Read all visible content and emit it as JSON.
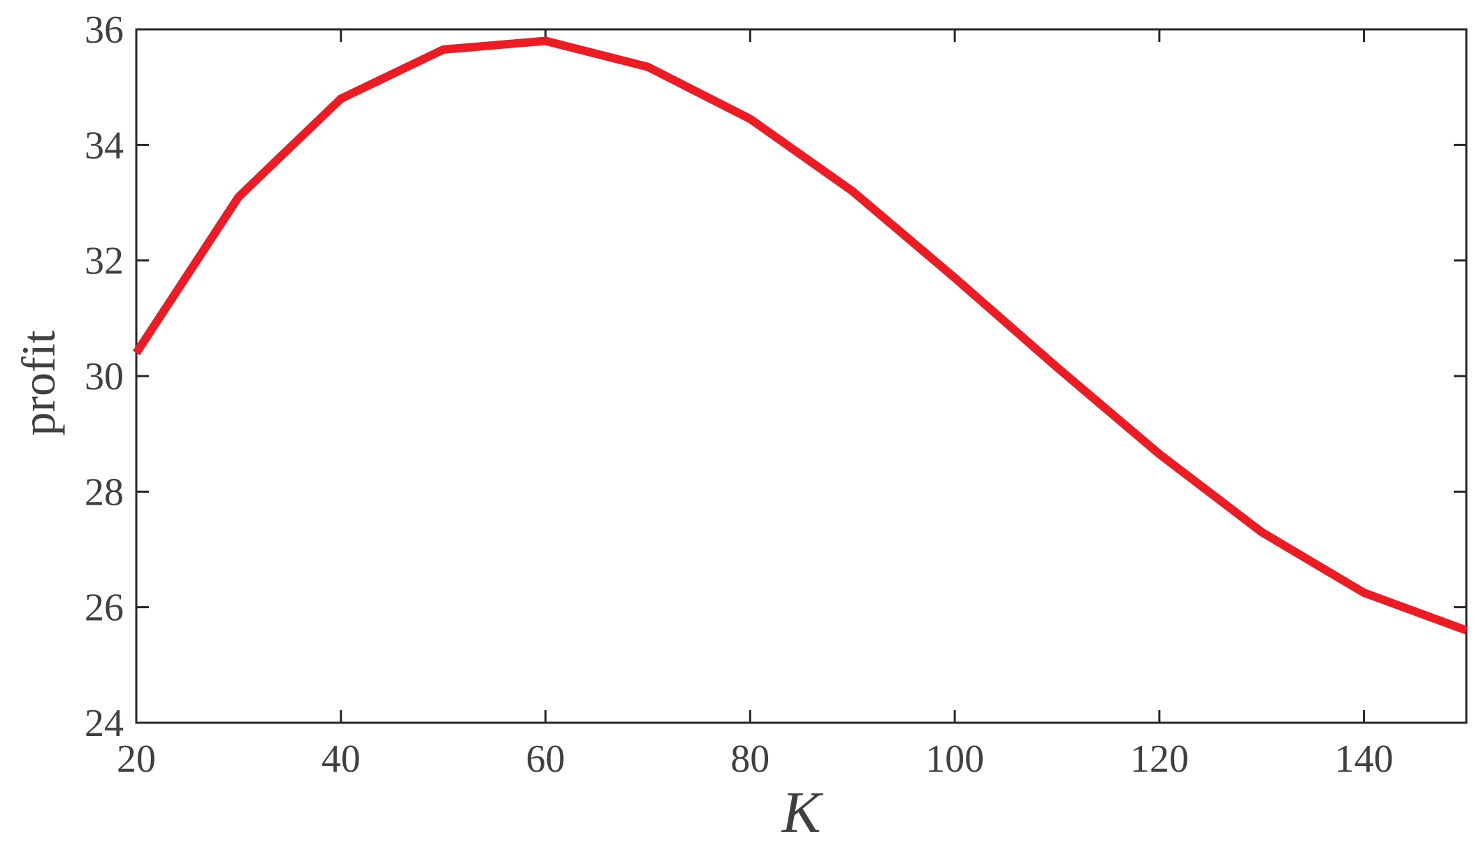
{
  "chart_data": {
    "type": "line",
    "xlabel": "K",
    "ylabel": "profit",
    "xlim": [
      20,
      150
    ],
    "ylim": [
      24,
      36
    ],
    "xticks": [
      20,
      40,
      60,
      80,
      100,
      120,
      140
    ],
    "yticks": [
      24,
      26,
      28,
      30,
      32,
      34,
      36
    ],
    "grid": false,
    "series": [
      {
        "color": "#ec1c24",
        "x": [
          20,
          30,
          40,
          50,
          60,
          70,
          80,
          90,
          100,
          110,
          120,
          130,
          140,
          150
        ],
        "y": [
          30.4,
          33.1,
          34.8,
          35.65,
          35.8,
          35.35,
          34.45,
          33.2,
          31.7,
          30.15,
          28.65,
          27.3,
          26.25,
          25.6
        ]
      }
    ]
  }
}
